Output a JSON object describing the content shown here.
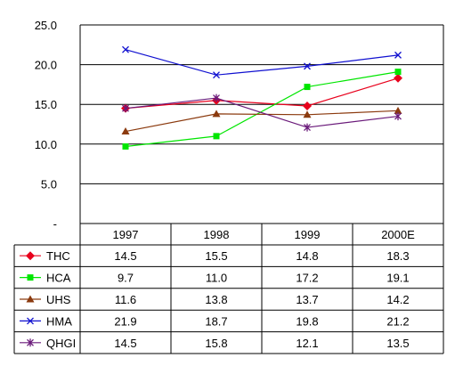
{
  "chart_data": {
    "type": "line",
    "categories": [
      "1997",
      "1998",
      "1999",
      "2000E"
    ],
    "ylim": [
      0,
      25
    ],
    "yticks": [
      "-",
      "5.0",
      "10.0",
      "15.0",
      "20.0",
      "25.0"
    ],
    "grid": true,
    "legend": "data table below plot",
    "series": [
      {
        "name": "THC",
        "values": [
          14.5,
          15.5,
          14.8,
          18.3
        ],
        "labels": [
          "14.5",
          "15.5",
          "14.8",
          "18.3"
        ],
        "color": "#e8001c",
        "marker": "diamond"
      },
      {
        "name": "HCA",
        "values": [
          9.7,
          11.0,
          17.2,
          19.1
        ],
        "labels": [
          "9.7",
          "11.0",
          "17.2",
          "19.1"
        ],
        "color": "#00e600",
        "marker": "square"
      },
      {
        "name": "UHS",
        "values": [
          11.6,
          13.8,
          13.7,
          14.2
        ],
        "labels": [
          "11.6",
          "13.8",
          "13.7",
          "14.2"
        ],
        "color": "#8b3a0e",
        "marker": "triangle"
      },
      {
        "name": "HMA",
        "values": [
          21.9,
          18.7,
          19.8,
          21.2
        ],
        "labels": [
          "21.9",
          "18.7",
          "19.8",
          "21.2"
        ],
        "color": "#1010d0",
        "marker": "x"
      },
      {
        "name": "QHGI",
        "values": [
          14.5,
          15.8,
          12.1,
          13.5
        ],
        "labels": [
          "14.5",
          "15.8",
          "12.1",
          "13.5"
        ],
        "color": "#6a1a7a",
        "marker": "star"
      }
    ]
  }
}
